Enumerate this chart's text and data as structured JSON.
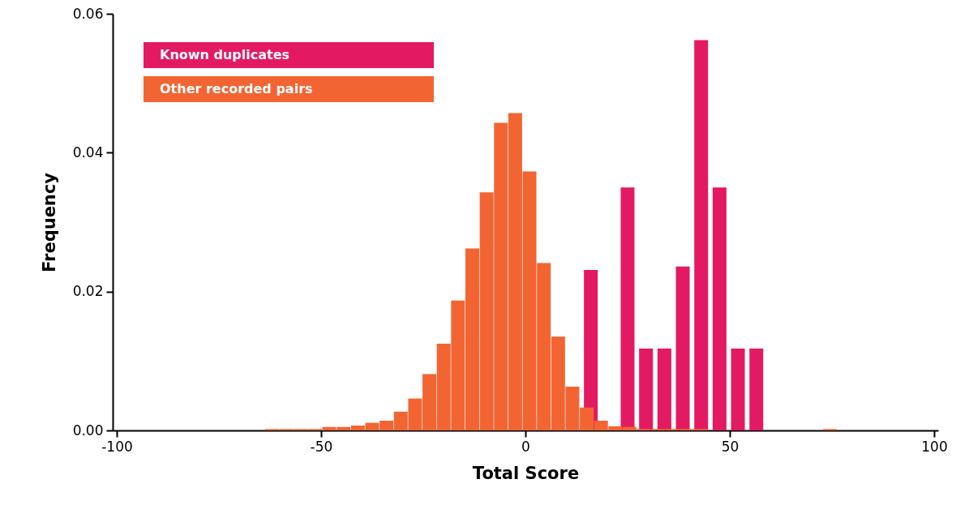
{
  "chart_data": {
    "type": "bar",
    "xlabel": "Total Score",
    "ylabel": "Frequency",
    "series": [
      {
        "name": "Known duplicates",
        "color": "#e31a62",
        "x": [
          16,
          25,
          29.5,
          34,
          38.5,
          43,
          47.5,
          52,
          56.5
        ],
        "values": [
          0.0231,
          0.035,
          0.0118,
          0.0118,
          0.0236,
          0.0562,
          0.035,
          0.0118,
          0.0118
        ]
      },
      {
        "name": "Other recorded pairs",
        "color": "#f26533",
        "x": [
          -62,
          -58.5,
          -55,
          -51.5,
          -48,
          -44.5,
          -41,
          -37.5,
          -34,
          -30.5,
          -27,
          -23.5,
          -20,
          -16.5,
          -13,
          -9.5,
          -6,
          -2.5,
          1,
          4.5,
          8,
          11.5,
          15,
          18.5,
          22,
          25.5,
          29,
          32.5,
          36,
          39.5,
          43,
          74.5
        ],
        "values": [
          0.0002,
          0.0002,
          0.0002,
          0.0002,
          0.0005,
          0.0005,
          0.0007,
          0.0011,
          0.0014,
          0.0027,
          0.0046,
          0.0081,
          0.0125,
          0.0187,
          0.0262,
          0.0343,
          0.0443,
          0.0457,
          0.0373,
          0.0241,
          0.0135,
          0.0063,
          0.0033,
          0.0014,
          0.0006,
          0.0005,
          0.0002,
          0.0002,
          0.0002,
          0.0002,
          0.0002,
          0.0002
        ]
      }
    ],
    "xlim": [
      -100,
      100
    ],
    "xticks": [
      -100,
      -50,
      0,
      50,
      100
    ],
    "ylim": [
      0,
      0.06
    ],
    "yticks": [
      {
        "value": 0,
        "label": "0.00"
      },
      {
        "value": 0.02,
        "label": "0.02"
      },
      {
        "value": 0.04,
        "label": "0.04"
      },
      {
        "value": 0.06,
        "label": "0.06"
      }
    ],
    "grid": false,
    "legend": "top left"
  }
}
